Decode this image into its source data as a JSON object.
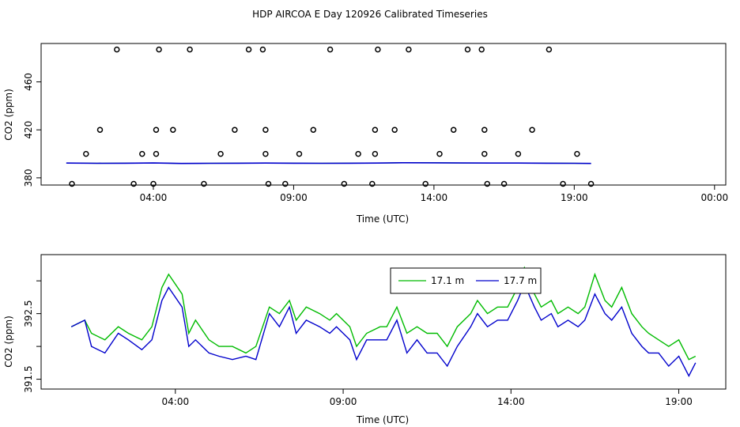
{
  "title": "HDP AIRCOA E  Day 120926  Calibrated Timeseries",
  "chart_data": [
    {
      "type": "scatter",
      "xlabel": "Time (UTC)",
      "ylabel": "CO2 (ppm)",
      "xlim": [
        0.0,
        24.4
      ],
      "ylim": [
        374,
        492
      ],
      "xticks": [
        {
          "value": 4.0,
          "label": "04:00"
        },
        {
          "value": 9.0,
          "label": "09:00"
        },
        {
          "value": 14.0,
          "label": "14:00"
        },
        {
          "value": 19.0,
          "label": "19:00"
        },
        {
          "value": 24.0,
          "label": "00:00"
        }
      ],
      "yticks": [
        {
          "value": 380,
          "label": "380"
        },
        {
          "value": 420,
          "label": "420"
        },
        {
          "value": 460,
          "label": "460"
        }
      ],
      "points": [
        {
          "x": 1.6,
          "y": 400
        },
        {
          "x": 1.1,
          "y": 375
        },
        {
          "x": 2.1,
          "y": 420
        },
        {
          "x": 2.7,
          "y": 487
        },
        {
          "x": 3.3,
          "y": 375
        },
        {
          "x": 3.6,
          "y": 400
        },
        {
          "x": 4.0,
          "y": 375
        },
        {
          "x": 4.1,
          "y": 400
        },
        {
          "x": 4.1,
          "y": 420
        },
        {
          "x": 4.2,
          "y": 487
        },
        {
          "x": 4.7,
          "y": 420
        },
        {
          "x": 5.3,
          "y": 487
        },
        {
          "x": 5.8,
          "y": 375
        },
        {
          "x": 6.4,
          "y": 400
        },
        {
          "x": 6.9,
          "y": 420
        },
        {
          "x": 7.4,
          "y": 487
        },
        {
          "x": 7.9,
          "y": 487
        },
        {
          "x": 8.0,
          "y": 420
        },
        {
          "x": 8.0,
          "y": 400
        },
        {
          "x": 8.1,
          "y": 375
        },
        {
          "x": 8.7,
          "y": 375
        },
        {
          "x": 9.2,
          "y": 400
        },
        {
          "x": 9.7,
          "y": 420
        },
        {
          "x": 10.3,
          "y": 487
        },
        {
          "x": 10.8,
          "y": 375
        },
        {
          "x": 11.3,
          "y": 400
        },
        {
          "x": 11.8,
          "y": 375
        },
        {
          "x": 11.9,
          "y": 400
        },
        {
          "x": 11.9,
          "y": 420
        },
        {
          "x": 12.0,
          "y": 487
        },
        {
          "x": 12.6,
          "y": 420
        },
        {
          "x": 13.1,
          "y": 487
        },
        {
          "x": 13.7,
          "y": 375
        },
        {
          "x": 14.2,
          "y": 400
        },
        {
          "x": 14.7,
          "y": 420
        },
        {
          "x": 15.2,
          "y": 487
        },
        {
          "x": 15.7,
          "y": 487
        },
        {
          "x": 15.8,
          "y": 420
        },
        {
          "x": 15.8,
          "y": 400
        },
        {
          "x": 15.9,
          "y": 375
        },
        {
          "x": 16.5,
          "y": 375
        },
        {
          "x": 17.0,
          "y": 400
        },
        {
          "x": 17.5,
          "y": 420
        },
        {
          "x": 18.1,
          "y": 487
        },
        {
          "x": 18.6,
          "y": 375
        },
        {
          "x": 19.1,
          "y": 400
        },
        {
          "x": 19.6,
          "y": 375
        }
      ],
      "line": {
        "x": [
          0.9,
          2.0,
          3.0,
          4.0,
          5.0,
          6.0,
          7.0,
          8.0,
          9.0,
          10.0,
          11.0,
          12.0,
          13.0,
          14.0,
          15.0,
          16.0,
          17.0,
          18.0,
          19.0,
          19.6
        ],
        "y": [
          392.3,
          392.1,
          392.2,
          392.4,
          392.0,
          392.1,
          392.2,
          392.3,
          392.2,
          392.1,
          392.2,
          392.3,
          392.6,
          392.5,
          392.4,
          392.3,
          392.3,
          392.2,
          392.1,
          392.0
        ]
      },
      "colors": {
        "points": "#000000",
        "line": "#0000cc",
        "line2": "#00bb00"
      }
    },
    {
      "type": "line",
      "xlabel": "Time (UTC)",
      "ylabel": "CO2 (ppm)",
      "xlim": [
        0.0,
        20.4
      ],
      "ylim": [
        391.35,
        393.4
      ],
      "xticks": [
        {
          "value": 4.0,
          "label": "04:00"
        },
        {
          "value": 9.0,
          "label": "09:00"
        },
        {
          "value": 14.0,
          "label": "14:00"
        },
        {
          "value": 19.0,
          "label": "19:00"
        }
      ],
      "yticks": [
        {
          "value": 391.5,
          "label": "391.5"
        },
        {
          "value": 392.0,
          "label": ""
        },
        {
          "value": 392.5,
          "label": "392.5"
        },
        {
          "value": 393.0,
          "label": ""
        }
      ],
      "legend_placement": "top-right",
      "series": [
        {
          "name": "17.1 m",
          "color": "#00bb00",
          "x": [
            0.9,
            1.3,
            1.5,
            1.9,
            2.3,
            2.6,
            3.0,
            3.3,
            3.6,
            3.8,
            4.2,
            4.4,
            4.6,
            5.0,
            5.3,
            5.7,
            6.1,
            6.4,
            6.8,
            7.1,
            7.4,
            7.6,
            7.9,
            8.3,
            8.6,
            8.8,
            9.2,
            9.4,
            9.7,
            10.1,
            10.3,
            10.6,
            10.9,
            11.2,
            11.5,
            11.8,
            12.1,
            12.4,
            12.8,
            13.0,
            13.3,
            13.6,
            13.9,
            14.2,
            14.4,
            14.7,
            14.9,
            15.2,
            15.4,
            15.7,
            16.0,
            16.2,
            16.5,
            16.8,
            17.0,
            17.3,
            17.6,
            17.9,
            18.1,
            18.4,
            18.7,
            19.0,
            19.3,
            19.5
          ],
          "y": [
            392.3,
            392.4,
            392.2,
            392.1,
            392.3,
            392.2,
            392.1,
            392.3,
            392.9,
            393.1,
            392.8,
            392.2,
            392.4,
            392.1,
            392.0,
            392.0,
            391.9,
            392.0,
            392.6,
            392.5,
            392.7,
            392.4,
            392.6,
            392.5,
            392.4,
            392.5,
            392.3,
            392.0,
            392.2,
            392.3,
            392.3,
            392.6,
            392.2,
            392.3,
            392.2,
            392.2,
            392.0,
            392.3,
            392.5,
            392.7,
            392.5,
            392.6,
            392.6,
            392.9,
            393.2,
            392.8,
            392.6,
            392.7,
            392.5,
            392.6,
            392.5,
            392.6,
            393.1,
            392.7,
            392.6,
            392.9,
            392.5,
            392.3,
            392.2,
            392.1,
            392.0,
            392.1,
            391.8,
            391.85
          ]
        },
        {
          "name": "17.7 m",
          "color": "#0000cc",
          "x": [
            0.9,
            1.3,
            1.5,
            1.9,
            2.3,
            2.6,
            3.0,
            3.3,
            3.6,
            3.8,
            4.2,
            4.4,
            4.6,
            5.0,
            5.3,
            5.7,
            6.1,
            6.4,
            6.8,
            7.1,
            7.4,
            7.6,
            7.9,
            8.3,
            8.6,
            8.8,
            9.2,
            9.4,
            9.7,
            10.1,
            10.3,
            10.6,
            10.9,
            11.2,
            11.5,
            11.8,
            12.1,
            12.4,
            12.8,
            13.0,
            13.3,
            13.6,
            13.9,
            14.2,
            14.4,
            14.7,
            14.9,
            15.2,
            15.4,
            15.7,
            16.0,
            16.2,
            16.5,
            16.8,
            17.0,
            17.3,
            17.6,
            17.9,
            18.1,
            18.4,
            18.7,
            19.0,
            19.3,
            19.5
          ],
          "y": [
            392.3,
            392.4,
            392.0,
            391.9,
            392.2,
            392.1,
            391.95,
            392.1,
            392.7,
            392.9,
            392.6,
            392.0,
            392.1,
            391.9,
            391.85,
            391.8,
            391.85,
            391.8,
            392.5,
            392.3,
            392.6,
            392.2,
            392.4,
            392.3,
            392.2,
            392.3,
            392.1,
            391.8,
            392.1,
            392.1,
            392.1,
            392.4,
            391.9,
            392.1,
            391.9,
            391.9,
            391.7,
            392.0,
            392.3,
            392.5,
            392.3,
            392.4,
            392.4,
            392.7,
            392.95,
            392.6,
            392.4,
            392.5,
            392.3,
            392.4,
            392.3,
            392.4,
            392.8,
            392.5,
            392.4,
            392.6,
            392.2,
            392.0,
            391.9,
            391.9,
            391.7,
            391.85,
            391.55,
            391.75
          ]
        }
      ]
    }
  ]
}
